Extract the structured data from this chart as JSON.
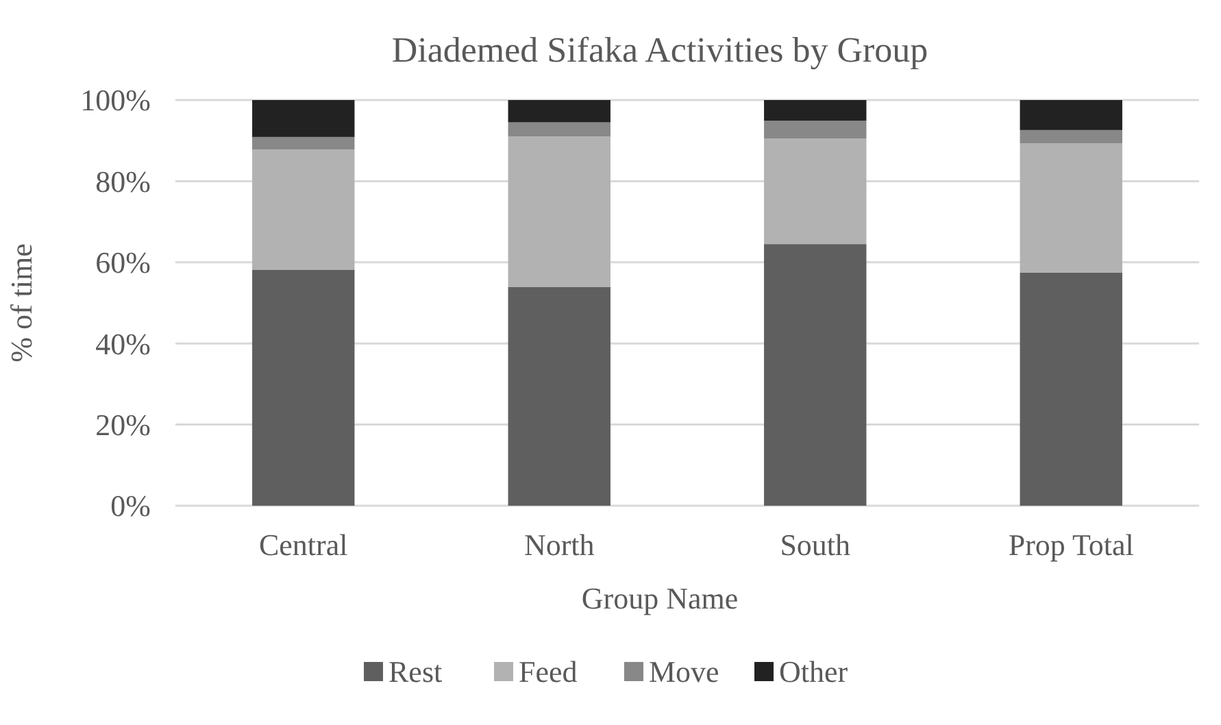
{
  "chart_data": {
    "type": "bar",
    "stacked": true,
    "title": "Diademed Sifaka Activities by Group",
    "xlabel": "Group Name",
    "ylabel": "% of time",
    "categories": [
      "Central",
      "North",
      "South",
      "Prop Total"
    ],
    "series": [
      {
        "name": "Rest",
        "color": "#5f5f5f",
        "values": [
          58.2,
          53.9,
          64.5,
          57.5
        ]
      },
      {
        "name": "Feed",
        "color": "#b2b2b2",
        "values": [
          29.6,
          37.1,
          26.0,
          31.8
        ]
      },
      {
        "name": "Move",
        "color": "#888888",
        "values": [
          3.1,
          3.5,
          4.4,
          3.3
        ]
      },
      {
        "name": "Other",
        "color": "#222222",
        "values": [
          9.1,
          5.5,
          5.1,
          7.4
        ]
      }
    ],
    "ylim": [
      0,
      100
    ],
    "yticks": [
      {
        "value": 0,
        "label": "0%"
      },
      {
        "value": 20,
        "label": "20%"
      },
      {
        "value": 40,
        "label": "40%"
      },
      {
        "value": 60,
        "label": "60%"
      },
      {
        "value": 80,
        "label": "80%"
      },
      {
        "value": 100,
        "label": "100%"
      }
    ],
    "grid": "y",
    "legend": "bottom"
  }
}
